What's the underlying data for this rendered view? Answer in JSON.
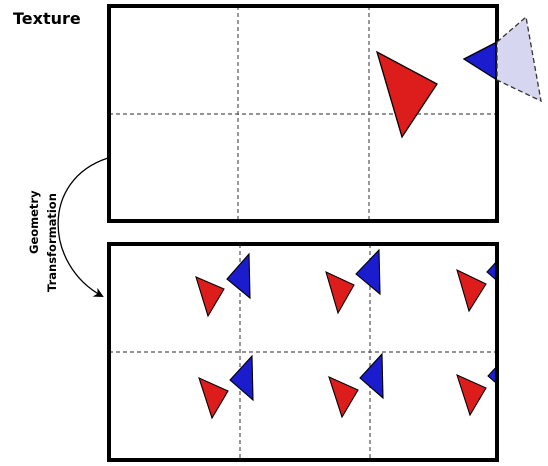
{
  "texture_label": "Texture",
  "transform_label": {
    "line1": "Geometry",
    "line2": "Transformation"
  },
  "colors": {
    "red": "#dd1c1c",
    "blue": "#1c1ccf",
    "ghost_fill": "#d6d6f0",
    "frame": "#000000",
    "grid": "#555555"
  }
}
